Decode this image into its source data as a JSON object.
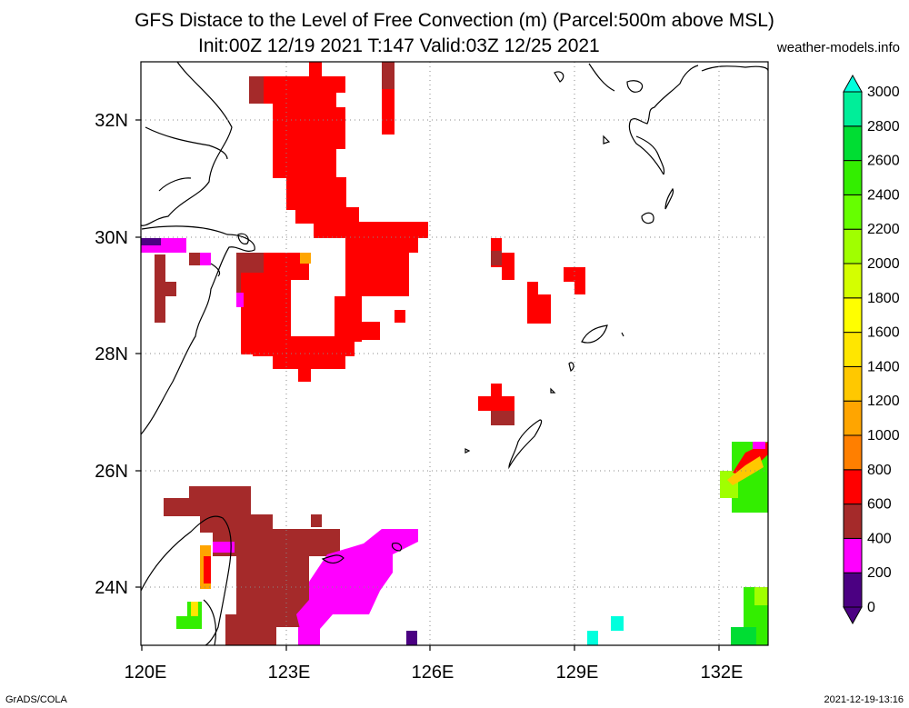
{
  "header": {
    "title_line1": "GFS Distace to the Level of Free Convection (m) (Parcel:500m above MSL)",
    "title_line2": "Init:00Z 12/19 2021 T:147 Valid:03Z 12/25 2021",
    "source": "weather-models.info"
  },
  "map": {
    "lon_ticks": [
      "120E",
      "123E",
      "126E",
      "129E",
      "132E"
    ],
    "lat_ticks": [
      "32N",
      "30N",
      "28N",
      "26N",
      "24N"
    ],
    "lon_range": [
      120,
      133
    ],
    "lat_range": [
      23,
      33
    ],
    "gridlines": true
  },
  "colorbar": {
    "labels": [
      "0",
      "200",
      "400",
      "600",
      "800",
      "1000",
      "1200",
      "1400",
      "1600",
      "1800",
      "2000",
      "2200",
      "2400",
      "2600",
      "2800",
      "3000"
    ],
    "colors": [
      "#4b0082",
      "#ff00ff",
      "#a52a2a",
      "#ff0000",
      "#ff7f00",
      "#ffa500",
      "#ffc800",
      "#ffe600",
      "#ffff00",
      "#d4ff00",
      "#a0ff00",
      "#66ff00",
      "#33ee00",
      "#00dd33",
      "#00ee99",
      "#00ffdd"
    ],
    "max_color": "#00ffdd",
    "min_color": "#4b0082"
  },
  "footer": {
    "left": "GrADS/COLA",
    "right": "2021-12-19-13:16"
  }
}
